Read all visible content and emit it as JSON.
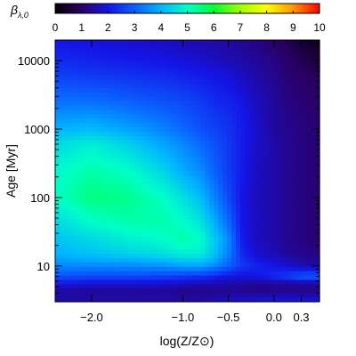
{
  "chart_data": {
    "type": "heatmap",
    "title": "",
    "xlabel": "log(Z/Z⊙)",
    "ylabel": "Age [Myr]",
    "xlim": [
      -2.4,
      0.5
    ],
    "ylim": [
      3,
      20000
    ],
    "y_scale": "log",
    "x_ticks": [
      -2.0,
      -1.0,
      -0.5,
      0.0,
      0.3
    ],
    "x_tick_labels": [
      "−2.0",
      "−1.0",
      "−0.5",
      "0.0",
      "0.3"
    ],
    "y_ticks": [
      10,
      100,
      1000,
      10000
    ],
    "y_tick_labels": [
      "10",
      "100",
      "1000",
      "10000"
    ],
    "colorbar": {
      "label": "βλ,0",
      "range": [
        0,
        10
      ],
      "ticks": [
        0,
        1,
        2,
        3,
        4,
        5,
        6,
        7,
        8,
        9,
        10
      ],
      "tick_labels": [
        "0",
        "1",
        "2",
        "3",
        "4",
        "5",
        "6",
        "7",
        "8",
        "9",
        "10"
      ],
      "position": "top"
    },
    "colormap_stops": [
      "#000000",
      "#2a0068",
      "#1414e6",
      "#0a60ff",
      "#00b4ff",
      "#00ffc8",
      "#00ff30",
      "#a0ff00",
      "#ffff00",
      "#ff9400",
      "#ff0000"
    ],
    "grid": false,
    "z_grid": {
      "x": [
        -2.4,
        -2.0,
        -1.6,
        -1.2,
        -1.0,
        -0.8,
        -0.65,
        -0.5,
        -0.35,
        -0.2,
        0.0,
        0.15,
        0.3,
        0.45,
        0.5
      ],
      "y": [
        3,
        4.5,
        5.5,
        7,
        10,
        15,
        25,
        45,
        100,
        250,
        600,
        1000,
        2500,
        6000,
        10000,
        20000
      ],
      "z": [
        [
          1.5,
          1.5,
          1.5,
          1.5,
          1.5,
          1.5,
          1.6,
          1.7,
          1.8,
          1.9,
          2.0,
          2.0,
          2.0,
          2.0,
          2.0
        ],
        [
          1.5,
          1.4,
          1.4,
          1.4,
          1.3,
          1.3,
          1.3,
          1.3,
          1.3,
          1.2,
          1.2,
          1.2,
          1.2,
          1.2,
          1.2
        ],
        [
          2.0,
          1.9,
          1.9,
          1.8,
          1.7,
          1.6,
          1.6,
          1.5,
          1.5,
          1.4,
          1.4,
          1.4,
          1.4,
          1.4,
          1.4
        ],
        [
          2.8,
          2.7,
          2.7,
          2.6,
          2.5,
          2.4,
          2.2,
          2.0,
          1.9,
          2.0,
          2.3,
          2.6,
          2.9,
          3.0,
          3.0
        ],
        [
          3.5,
          3.5,
          3.5,
          3.6,
          3.8,
          3.8,
          3.5,
          3.0,
          2.5,
          2.2,
          2.0,
          1.8,
          1.6,
          1.5,
          1.5
        ],
        [
          4.0,
          4.2,
          4.4,
          4.6,
          4.8,
          4.8,
          4.2,
          3.4,
          2.3,
          1.8,
          1.6,
          1.4,
          1.3,
          1.2,
          1.2
        ],
        [
          4.2,
          4.5,
          4.8,
          5.0,
          5.2,
          5.0,
          4.3,
          3.5,
          2.1,
          1.7,
          1.5,
          1.3,
          1.2,
          1.1,
          1.1
        ],
        [
          4.5,
          5.0,
          5.2,
          5.2,
          5.0,
          4.6,
          3.9,
          3.1,
          2.0,
          1.7,
          1.5,
          1.3,
          1.2,
          1.1,
          1.1
        ],
        [
          5.0,
          5.5,
          5.4,
          5.0,
          4.6,
          4.1,
          3.4,
          2.7,
          2.0,
          1.7,
          1.5,
          1.3,
          1.2,
          1.1,
          1.1
        ],
        [
          4.9,
          5.2,
          5.0,
          4.4,
          3.9,
          3.5,
          3.0,
          2.5,
          2.1,
          1.7,
          1.5,
          1.3,
          1.2,
          1.1,
          1.1
        ],
        [
          4.5,
          4.8,
          4.4,
          3.8,
          3.5,
          3.1,
          2.8,
          2.5,
          2.1,
          1.8,
          1.5,
          1.3,
          1.2,
          1.1,
          1.1
        ],
        [
          4.0,
          4.1,
          3.8,
          3.4,
          3.1,
          2.8,
          2.6,
          2.4,
          2.1,
          1.8,
          1.4,
          1.3,
          1.2,
          1.1,
          1.1
        ],
        [
          3.2,
          3.2,
          3.0,
          2.8,
          2.7,
          2.5,
          2.3,
          2.2,
          2.0,
          1.7,
          1.4,
          1.2,
          1.1,
          1.0,
          1.0
        ],
        [
          2.6,
          2.5,
          2.4,
          2.3,
          2.2,
          2.1,
          2.0,
          1.9,
          1.7,
          1.5,
          1.3,
          1.1,
          1.0,
          0.9,
          0.9
        ],
        [
          2.3,
          2.2,
          2.1,
          2.0,
          1.9,
          1.8,
          1.7,
          1.6,
          1.5,
          1.4,
          1.2,
          1.0,
          0.8,
          0.6,
          0.6
        ],
        [
          2.0,
          1.9,
          1.8,
          1.7,
          1.6,
          1.5,
          1.5,
          1.4,
          1.3,
          1.2,
          1.0,
          0.8,
          0.5,
          0.3,
          0.3
        ]
      ]
    }
  }
}
